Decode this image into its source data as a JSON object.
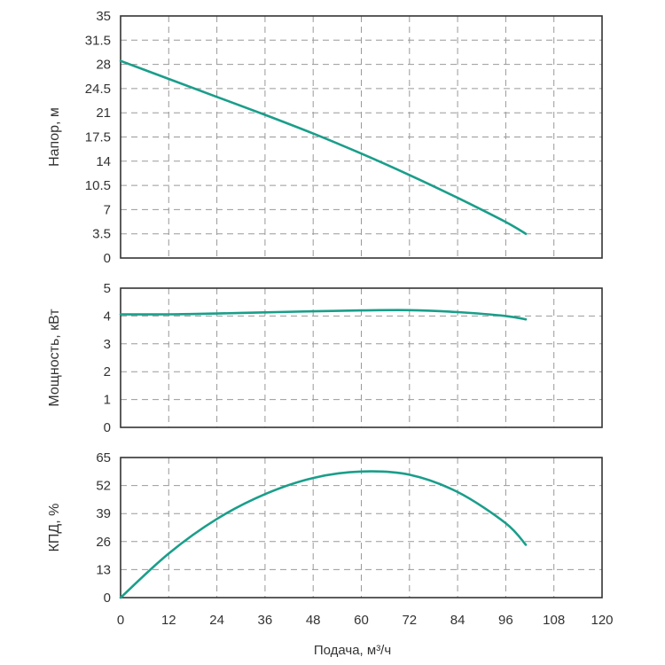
{
  "chart_data": [
    {
      "type": "line",
      "id": "head",
      "ylabel": "Напор, м",
      "ylim": [
        0,
        35
      ],
      "yticks": [
        "0",
        "3.5",
        "7",
        "10.5",
        "14",
        "17.5",
        "21",
        "24.5",
        "28",
        "31.5",
        "35"
      ],
      "xlim": [
        0,
        120
      ],
      "series": [
        {
          "name": "Напор",
          "x": [
            0,
            12,
            24,
            36,
            48,
            60,
            72,
            84,
            96,
            101
          ],
          "y": [
            28.5,
            25.9,
            23.3,
            20.7,
            18.0,
            15.1,
            12.0,
            8.7,
            5.2,
            3.5
          ]
        }
      ]
    },
    {
      "type": "line",
      "id": "power",
      "ylabel": "Мощность, кВт",
      "ylim": [
        0,
        5
      ],
      "yticks": [
        "0",
        "1",
        "2",
        "3",
        "4",
        "5"
      ],
      "xlim": [
        0,
        120
      ],
      "series": [
        {
          "name": "Мощность",
          "x": [
            0,
            12,
            24,
            36,
            48,
            60,
            72,
            84,
            96,
            101
          ],
          "y": [
            4.06,
            4.06,
            4.09,
            4.13,
            4.17,
            4.2,
            4.21,
            4.14,
            4.0,
            3.88
          ]
        }
      ]
    },
    {
      "type": "line",
      "id": "efficiency",
      "ylabel": "КПД, %",
      "ylim": [
        0,
        65
      ],
      "yticks": [
        "0",
        "13",
        "26",
        "39",
        "52",
        "65"
      ],
      "xlim": [
        0,
        120
      ],
      "xticks": [
        "0",
        "12",
        "24",
        "36",
        "48",
        "60",
        "72",
        "84",
        "96",
        "108",
        "120"
      ],
      "xlabel": "Подача, м³/ч",
      "series": [
        {
          "name": "КПД",
          "x": [
            0,
            12,
            24,
            36,
            48,
            60,
            72,
            84,
            96,
            101
          ],
          "y": [
            0,
            20.5,
            36.5,
            48.0,
            55.5,
            58.5,
            57.0,
            49.0,
            34.5,
            24.5
          ]
        }
      ]
    }
  ],
  "colors": {
    "curve": "#1a9e8a",
    "grid": "#999999",
    "frame": "#333333"
  }
}
